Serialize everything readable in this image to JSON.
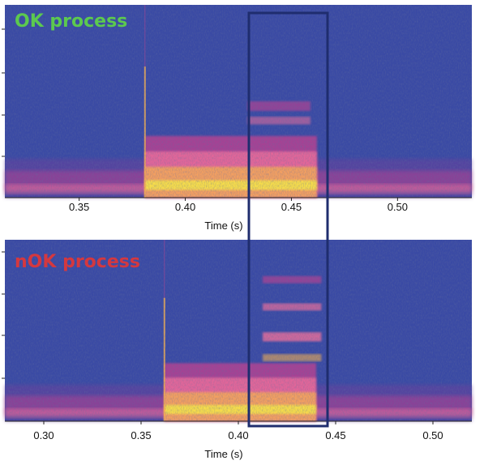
{
  "chart_data": [
    {
      "type": "heatmap",
      "title": "OK process",
      "title_color": "#5cc94f",
      "xlabel": "Time (s)",
      "ylabel": "",
      "xlim": [
        0.315,
        0.535
      ],
      "xticks": [
        "0.35",
        "0.40",
        "0.45",
        "0.50"
      ],
      "xtick_values": [
        0.35,
        0.4,
        0.45,
        0.5
      ],
      "event_onset": 0.381,
      "event_end": 0.462,
      "colormap": [
        "#3a4aa4",
        "#6a3f9c",
        "#c9418f",
        "#f0709b",
        "#f7b24f",
        "#f7e34a"
      ]
    },
    {
      "type": "heatmap",
      "title": "nOK process",
      "title_color": "#d4383f",
      "xlabel": "Time (s)",
      "ylabel": "",
      "xlim": [
        0.28,
        0.52
      ],
      "xticks": [
        "0.30",
        "0.35",
        "0.40",
        "0.45",
        "0.50"
      ],
      "xtick_values": [
        0.3,
        0.35,
        0.4,
        0.45,
        0.5
      ],
      "event_onset": 0.362,
      "event_end": 0.44,
      "colormap": [
        "#3a4aa4",
        "#6a3f9c",
        "#c9418f",
        "#f0709b",
        "#f7b24f",
        "#f7e34a"
      ]
    }
  ],
  "highlight": {
    "color": "#1f2d6e",
    "label": "",
    "range_top_panel": [
      0.427,
      0.462
    ],
    "range_bottom_panel": [
      0.41,
      0.446
    ]
  }
}
